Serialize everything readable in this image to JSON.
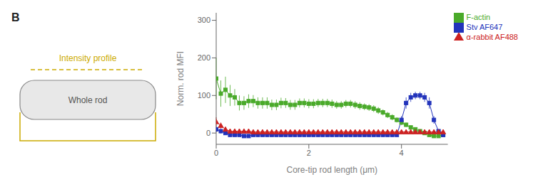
{
  "chart_data": {
    "type": "line",
    "title": "B",
    "x_label": "Core-tip rod length (μm)",
    "y_label": "Norm. rod MFI",
    "xlim": [
      0,
      5.0
    ],
    "ylim": [
      -30,
      320
    ],
    "xticks": [
      0,
      2,
      4
    ],
    "yticks": [
      0,
      100,
      200,
      300
    ],
    "grid": false,
    "legend": "upper right",
    "annotations": [
      {
        "text": "Whole rod",
        "color": "#888888"
      },
      {
        "text": "Intensity profile",
        "color": "#ccaa00"
      }
    ],
    "x": [
      0.0,
      0.1,
      0.2,
      0.3,
      0.4,
      0.5,
      0.6,
      0.7,
      0.8,
      0.9,
      1.0,
      1.1,
      1.2,
      1.3,
      1.4,
      1.5,
      1.6,
      1.7,
      1.8,
      1.9,
      2.0,
      2.1,
      2.2,
      2.3,
      2.4,
      2.5,
      2.6,
      2.7,
      2.8,
      2.9,
      3.0,
      3.1,
      3.2,
      3.3,
      3.4,
      3.5,
      3.6,
      3.7,
      3.8,
      3.9,
      4.0,
      4.1,
      4.2,
      4.3,
      4.4,
      4.5,
      4.6,
      4.7,
      4.8,
      4.9
    ],
    "series": [
      {
        "name": "F-actin",
        "color": "#4aaa2a",
        "marker": "square",
        "line_style": "solid",
        "values": [
          145,
          105,
          115,
          100,
          95,
          80,
          80,
          85,
          85,
          80,
          80,
          80,
          75,
          75,
          80,
          80,
          75,
          75,
          80,
          80,
          78,
          78,
          80,
          80,
          80,
          78,
          75,
          75,
          78,
          78,
          75,
          72,
          70,
          68,
          65,
          60,
          55,
          48,
          42,
          35,
          28,
          22,
          15,
          10,
          5,
          0,
          -5,
          -8,
          -8,
          -5
        ],
        "errors": [
          55,
          35,
          35,
          28,
          22,
          20,
          18,
          18,
          16,
          15,
          15,
          15,
          14,
          14,
          14,
          13,
          13,
          13,
          12,
          12,
          12,
          12,
          11,
          11,
          11,
          11,
          10,
          10,
          10,
          10,
          10,
          10,
          9,
          9,
          9,
          9,
          8,
          8,
          8,
          7,
          7,
          6,
          5,
          5,
          5,
          4,
          4,
          4,
          4,
          4
        ]
      },
      {
        "name": "Stv AF647",
        "color": "#2233bb",
        "marker": "square",
        "line_style": "solid",
        "values": [
          10,
          5,
          0,
          -5,
          -5,
          -5,
          -8,
          -8,
          -5,
          -5,
          -5,
          -5,
          -5,
          -5,
          -5,
          -5,
          -5,
          -5,
          -5,
          -5,
          -5,
          -5,
          -5,
          -5,
          -5,
          -5,
          -5,
          -5,
          -5,
          -5,
          -5,
          -5,
          -5,
          -5,
          -5,
          -5,
          -5,
          -5,
          -5,
          -5,
          35,
          80,
          95,
          100,
          100,
          95,
          80,
          35,
          5,
          -5
        ],
        "errors": [
          8,
          6,
          5,
          4,
          4,
          4,
          4,
          4,
          3,
          3,
          3,
          3,
          3,
          3,
          3,
          3,
          3,
          3,
          3,
          3,
          3,
          3,
          3,
          3,
          3,
          3,
          3,
          3,
          3,
          3,
          3,
          3,
          3,
          3,
          3,
          3,
          3,
          3,
          3,
          3,
          10,
          15,
          12,
          10,
          10,
          12,
          15,
          10,
          5,
          4
        ]
      },
      {
        "name": "α-rabbit AF488",
        "color": "#cc2222",
        "marker": "triangle",
        "line_style": "solid",
        "values": [
          30,
          20,
          10,
          5,
          5,
          5,
          5,
          5,
          3,
          3,
          3,
          3,
          3,
          3,
          3,
          3,
          3,
          3,
          3,
          3,
          3,
          3,
          3,
          3,
          3,
          3,
          3,
          3,
          3,
          3,
          3,
          3,
          3,
          3,
          3,
          3,
          3,
          3,
          3,
          3,
          3,
          3,
          3,
          3,
          3,
          3,
          3,
          3,
          3,
          3
        ],
        "errors": [
          12,
          8,
          5,
          4,
          3,
          3,
          3,
          3,
          2,
          2,
          2,
          2,
          2,
          2,
          2,
          2,
          2,
          2,
          2,
          2,
          2,
          2,
          2,
          2,
          2,
          2,
          2,
          2,
          2,
          2,
          2,
          2,
          2,
          2,
          2,
          2,
          2,
          2,
          2,
          2,
          2,
          2,
          2,
          2,
          2,
          2,
          2,
          2,
          2,
          2
        ]
      }
    ]
  }
}
